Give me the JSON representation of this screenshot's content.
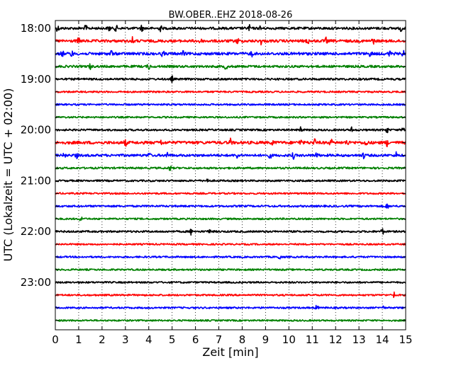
{
  "chart_data": {
    "type": "line",
    "title": "BW.OBER..EHZ 2018-08-26",
    "xlabel": "Zeit  [min]",
    "ylabel": "UTC (Lokalzeit = UTC + 02:00)",
    "xlim": [
      0,
      15
    ],
    "x_ticks": [
      "0",
      "1",
      "2",
      "3",
      "4",
      "5",
      "6",
      "7",
      "8",
      "9",
      "10",
      "11",
      "12",
      "13",
      "14",
      "15"
    ],
    "y_ticks": [
      "18:00",
      "19:00",
      "20:00",
      "21:00",
      "22:00",
      "23:00"
    ],
    "grid": "vertical dotted",
    "colors": [
      "#000000",
      "#ff0000",
      "#0000ff",
      "#008000"
    ],
    "traces": [
      {
        "start": "18:00",
        "color": "#000000",
        "activity": 0.55,
        "events": [
          0.1,
          1.3,
          2.3,
          2.6,
          3.7,
          4.5,
          8.3,
          8.8,
          14.8
        ]
      },
      {
        "start": "18:15",
        "color": "#ff0000",
        "activity": 0.7,
        "events": [
          1.0,
          3.3,
          6.2,
          7.8,
          8.8,
          10.8,
          11.6,
          13.6
        ]
      },
      {
        "start": "18:30",
        "color": "#0000ff",
        "activity": 0.7,
        "events": [
          0.3,
          0.7,
          2.4,
          4.6,
          5.5,
          8.4,
          10.5,
          13.5,
          14.3,
          14.9
        ]
      },
      {
        "start": "18:45",
        "color": "#008000",
        "activity": 0.5,
        "events": [
          1.5,
          4.0,
          7.3
        ]
      },
      {
        "start": "19:00",
        "color": "#000000",
        "activity": 0.35,
        "events": [
          5.0
        ]
      },
      {
        "start": "19:15",
        "color": "#ff0000",
        "activity": 0.2,
        "events": []
      },
      {
        "start": "19:30",
        "color": "#0000ff",
        "activity": 0.2,
        "events": []
      },
      {
        "start": "19:45",
        "color": "#008000",
        "activity": 0.2,
        "events": []
      },
      {
        "start": "20:00",
        "color": "#000000",
        "activity": 0.3,
        "events": [
          10.5,
          12.7,
          14.2,
          14.9
        ]
      },
      {
        "start": "20:15",
        "color": "#ff0000",
        "activity": 0.8,
        "events": [
          3.0,
          4.5,
          7.5,
          9.3,
          10.5,
          11.1,
          11.8,
          12.5,
          13.3,
          14.2
        ]
      },
      {
        "start": "20:30",
        "color": "#0000ff",
        "activity": 0.55,
        "events": [
          0.4,
          0.9,
          4.0,
          4.8,
          7.8,
          9.2,
          10.2,
          11.2,
          13.2,
          14.6
        ]
      },
      {
        "start": "20:45",
        "color": "#008000",
        "activity": 0.3,
        "events": [
          4.9
        ]
      },
      {
        "start": "21:00",
        "color": "#000000",
        "activity": 0.25,
        "events": [
          6.5
        ]
      },
      {
        "start": "21:15",
        "color": "#ff0000",
        "activity": 0.2,
        "events": []
      },
      {
        "start": "21:30",
        "color": "#0000ff",
        "activity": 0.3,
        "events": [
          14.2
        ]
      },
      {
        "start": "21:45",
        "color": "#008000",
        "activity": 0.2,
        "events": [
          1.1
        ]
      },
      {
        "start": "22:00",
        "color": "#000000",
        "activity": 0.3,
        "events": [
          5.8,
          6.6,
          14.0
        ]
      },
      {
        "start": "22:15",
        "color": "#ff0000",
        "activity": 0.15,
        "events": []
      },
      {
        "start": "22:30",
        "color": "#0000ff",
        "activity": 0.2,
        "events": [
          9.6
        ]
      },
      {
        "start": "22:45",
        "color": "#008000",
        "activity": 0.2,
        "events": []
      },
      {
        "start": "23:00",
        "color": "#000000",
        "activity": 0.2,
        "events": []
      },
      {
        "start": "23:15",
        "color": "#ff0000",
        "activity": 0.2,
        "events": [
          14.5
        ]
      },
      {
        "start": "23:30",
        "color": "#0000ff",
        "activity": 0.2,
        "events": [
          11.2,
          14.0
        ]
      },
      {
        "start": "23:45",
        "color": "#008000",
        "activity": 0.15,
        "events": []
      }
    ]
  }
}
